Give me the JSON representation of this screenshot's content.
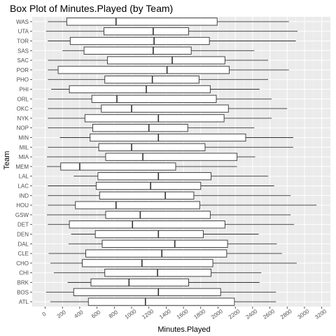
{
  "chart_data": {
    "type": "box",
    "title": "Box Plot of Minutes.Played (by Team)",
    "xlabel": "Minutes.Played",
    "ylabel": "Team",
    "xlim": [
      -150,
      3300
    ],
    "x_ticks": [
      0,
      200,
      400,
      600,
      800,
      1000,
      1200,
      1400,
      1600,
      1800,
      2000,
      2200,
      2400,
      2600,
      2800,
      3000,
      3200
    ],
    "grid": true,
    "categories": [
      "ATL",
      "BOS",
      "BRK",
      "CHI",
      "CHO",
      "CLE",
      "DAL",
      "DEN",
      "DET",
      "GSW",
      "HOU",
      "IND",
      "LAC",
      "LAL",
      "MEM",
      "MIA",
      "MIL",
      "MIN",
      "NOP",
      "NYK",
      "OKC",
      "ORL",
      "PHI",
      "PHO",
      "POR",
      "SAC",
      "SAS",
      "TOR",
      "UTA",
      "WAS"
    ],
    "boxes": [
      {
        "team": "ATL",
        "min": 60,
        "q1": 500,
        "median": 1160,
        "q3": 2190,
        "max": 2670
      },
      {
        "team": "BOS",
        "min": 10,
        "q1": 330,
        "median": 1310,
        "q3": 2030,
        "max": 2670
      },
      {
        "team": "BRK",
        "min": 260,
        "q1": 530,
        "median": 970,
        "q3": 1660,
        "max": 2480
      },
      {
        "team": "CHI",
        "min": 100,
        "q1": 690,
        "median": 1300,
        "q3": 1920,
        "max": 2500
      },
      {
        "team": "CHO",
        "min": 60,
        "q1": 430,
        "median": 1120,
        "q3": 1940,
        "max": 2910
      },
      {
        "team": "CLE",
        "min": 40,
        "q1": 470,
        "median": 1350,
        "q3": 2100,
        "max": 2740
      },
      {
        "team": "DAL",
        "min": 270,
        "q1": 660,
        "median": 1500,
        "q3": 2110,
        "max": 2680
      },
      {
        "team": "DEN",
        "min": 300,
        "q1": 580,
        "median": 1310,
        "q3": 1830,
        "max": 2470
      },
      {
        "team": "DET",
        "min": 30,
        "q1": 280,
        "median": 1010,
        "q3": 2080,
        "max": 2880
      },
      {
        "team": "GSW",
        "min": 20,
        "q1": 700,
        "median": 1100,
        "q3": 1910,
        "max": 2840
      },
      {
        "team": "HOU",
        "min": 30,
        "q1": 350,
        "median": 820,
        "q3": 1790,
        "max": 3140
      },
      {
        "team": "IND",
        "min": 30,
        "q1": 630,
        "median": 1390,
        "q3": 1720,
        "max": 2840
      },
      {
        "team": "LAC",
        "min": 30,
        "q1": 590,
        "median": 1220,
        "q3": 1800,
        "max": 2650
      },
      {
        "team": "LAL",
        "min": 330,
        "q1": 610,
        "median": 1310,
        "q3": 1920,
        "max": 2580
      },
      {
        "team": "MEM",
        "min": 20,
        "q1": 180,
        "median": 400,
        "q3": 1510,
        "max": 2220
      },
      {
        "team": "MIA",
        "min": 20,
        "q1": 700,
        "median": 1130,
        "q3": 2220,
        "max": 2430
      },
      {
        "team": "MIL",
        "min": 30,
        "q1": 620,
        "median": 1000,
        "q3": 1850,
        "max": 2870
      },
      {
        "team": "MIN",
        "min": 170,
        "q1": 520,
        "median": 1310,
        "q3": 2320,
        "max": 2870
      },
      {
        "team": "NOP",
        "min": 30,
        "q1": 550,
        "median": 1200,
        "q3": 1650,
        "max": 2420
      },
      {
        "team": "NYK",
        "min": 30,
        "q1": 460,
        "median": 1310,
        "q3": 2070,
        "max": 2620
      },
      {
        "team": "OKC",
        "min": 30,
        "q1": 650,
        "median": 1000,
        "q3": 2120,
        "max": 2800
      },
      {
        "team": "ORL",
        "min": 30,
        "q1": 540,
        "median": 830,
        "q3": 1980,
        "max": 2620
      },
      {
        "team": "PHI",
        "min": 70,
        "q1": 280,
        "median": 1170,
        "q3": 1910,
        "max": 2480
      },
      {
        "team": "PHO",
        "min": 30,
        "q1": 690,
        "median": 1240,
        "q3": 1780,
        "max": 2580
      },
      {
        "team": "POR",
        "min": 30,
        "q1": 150,
        "median": 1410,
        "q3": 2130,
        "max": 2820
      },
      {
        "team": "SAC",
        "min": 30,
        "q1": 720,
        "median": 1470,
        "q3": 2080,
        "max": 2580
      },
      {
        "team": "SAS",
        "min": 200,
        "q1": 450,
        "median": 1250,
        "q3": 1690,
        "max": 2420
      },
      {
        "team": "TOR",
        "min": 30,
        "q1": 290,
        "median": 1260,
        "q3": 1900,
        "max": 2900
      },
      {
        "team": "UTA",
        "min": 10,
        "q1": 680,
        "median": 1250,
        "q3": 1660,
        "max": 2920
      },
      {
        "team": "WAS",
        "min": 30,
        "q1": 250,
        "median": 820,
        "q3": 1990,
        "max": 2820
      }
    ]
  }
}
